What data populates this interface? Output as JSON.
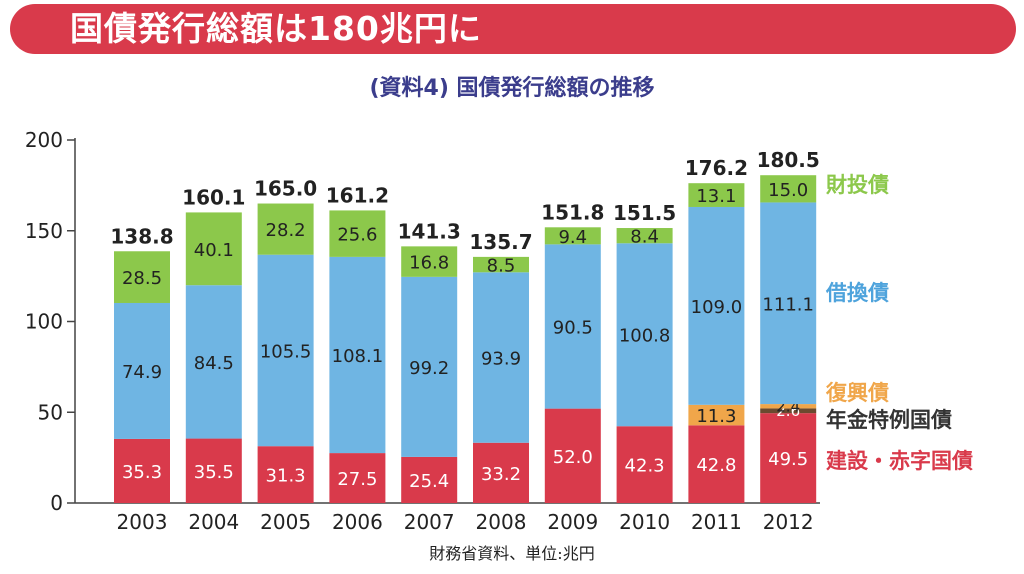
{
  "header": {
    "banner_title": "国債発行総額は180兆円に",
    "subtitle": "(資料4) 国債発行総額の推移",
    "source_note": "財務省資料、単位:兆円"
  },
  "colors": {
    "banner": "#d93a4b",
    "subtitle": "#3b3d8c",
    "construction": "#d93a4b",
    "pension": "#6b4a2f",
    "reconstruction": "#f0a64a",
    "refinancing": "#6fb5e3",
    "filp": "#8cc84b"
  },
  "chart_data": {
    "type": "bar",
    "stacked": true,
    "title": "(資料4) 国債発行総額の推移",
    "xlabel": "",
    "ylabel": "",
    "ylim": [
      0,
      200
    ],
    "yticks": [
      0,
      50,
      100,
      150,
      200
    ],
    "categories": [
      "2003",
      "2004",
      "2005",
      "2006",
      "2007",
      "2008",
      "2009",
      "2010",
      "2011",
      "2012"
    ],
    "series": [
      {
        "name": "建設・赤字国債",
        "color": "#d93a4b",
        "label_color": "#ffffff",
        "values": [
          35.3,
          35.5,
          31.3,
          27.5,
          25.4,
          33.2,
          52.0,
          42.3,
          42.8,
          49.5
        ],
        "labels": [
          "35.3",
          "35.5",
          "31.3",
          "27.5",
          "25.4",
          "33.2",
          "52.0",
          "42.3",
          "42.8",
          "49.5"
        ]
      },
      {
        "name": "年金特例国債",
        "color": "#6b4a2f",
        "label_color": "#ffffff",
        "values": [
          0,
          0,
          0,
          0,
          0,
          0,
          0,
          0,
          0,
          2.6
        ],
        "labels": [
          "",
          "",
          "",
          "",
          "",
          "",
          "",
          "",
          "",
          "2.6"
        ]
      },
      {
        "name": "復興債",
        "color": "#f0a64a",
        "label_color": "#222222",
        "values": [
          0,
          0,
          0,
          0,
          0,
          0,
          0,
          0,
          11.3,
          2.4
        ],
        "labels": [
          "",
          "",
          "",
          "",
          "",
          "",
          "",
          "",
          "11.3",
          "2.4"
        ]
      },
      {
        "name": "借換債",
        "color": "#6fb5e3",
        "label_color": "#222222",
        "values": [
          74.9,
          84.5,
          105.5,
          108.1,
          99.2,
          93.9,
          90.5,
          100.8,
          109.0,
          111.1
        ],
        "labels": [
          "74.9",
          "84.5",
          "105.5",
          "108.1",
          "99.2",
          "93.9",
          "90.5",
          "100.8",
          "109.0",
          "111.1"
        ]
      },
      {
        "name": "財投債",
        "color": "#8cc84b",
        "label_color": "#222222",
        "values": [
          28.5,
          40.1,
          28.2,
          25.6,
          16.8,
          8.5,
          9.4,
          8.4,
          13.1,
          15.0
        ],
        "labels": [
          "28.5",
          "40.1",
          "28.2",
          "25.6",
          "16.8",
          "8.5",
          "9.4",
          "8.4",
          "13.1",
          "15.0"
        ]
      }
    ],
    "totals": [
      "138.8",
      "160.1",
      "165.0",
      "161.2",
      "141.3",
      "135.7",
      "151.8",
      "151.5",
      "176.2",
      "180.5"
    ],
    "legend": [
      {
        "label": "財投債",
        "color": "#8cc84b"
      },
      {
        "label": "借換債",
        "color": "#4ea3dc"
      },
      {
        "label": "復興債",
        "color": "#f0a64a"
      },
      {
        "label": "年金特例国債",
        "color": "#333333"
      },
      {
        "label": "建設・赤字国債",
        "color": "#d93a4b"
      }
    ],
    "legend_placement": "right",
    "grid": false
  }
}
